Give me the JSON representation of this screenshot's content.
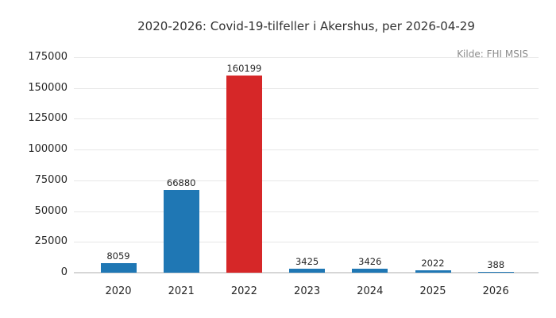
{
  "chart_data": {
    "type": "bar",
    "title": "2020-2026: Covid-19-tilfeller i Akershus, per 2026-04-29",
    "source_note": "Kilde: FHI MSIS",
    "categories": [
      "2020",
      "2021",
      "2022",
      "2023",
      "2024",
      "2025",
      "2026"
    ],
    "values": [
      8059,
      66880,
      160199,
      3425,
      3426,
      2022,
      388
    ],
    "value_labels": [
      "8059",
      "66880",
      "160199",
      "3425",
      "3426",
      "2022",
      "388"
    ],
    "bar_colors": [
      "#1f77b4",
      "#1f77b4",
      "#d62728",
      "#1f77b4",
      "#1f77b4",
      "#1f77b4",
      "#1f77b4"
    ],
    "xlabel": "",
    "ylabel": "",
    "ylim": [
      0,
      175000
    ],
    "yticks": [
      0,
      25000,
      50000,
      75000,
      100000,
      125000,
      150000,
      175000
    ],
    "ytick_labels": [
      "0",
      "25000",
      "50000",
      "75000",
      "100000",
      "125000",
      "150000",
      "175000"
    ],
    "grid": true,
    "legend": false,
    "colors": {
      "default_bar": "#1f77b4",
      "highlight_bar": "#d62728",
      "gridline": "#e7e7e7",
      "zero_line": "#d6d6d6",
      "text": "#262626",
      "source_text": "#8c8c8c"
    }
  }
}
